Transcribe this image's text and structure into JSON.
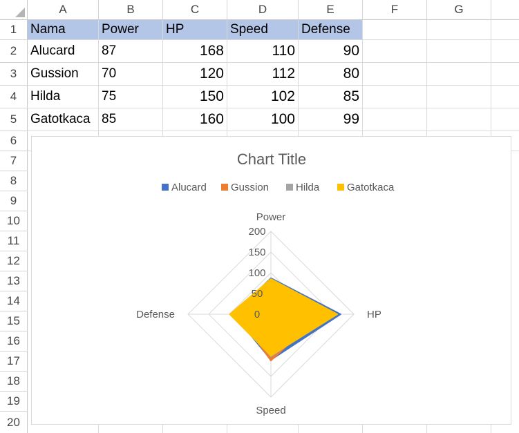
{
  "columns": [
    "A",
    "B",
    "C",
    "D",
    "E",
    "F",
    "G"
  ],
  "rows": [
    "1",
    "2",
    "3",
    "4",
    "5",
    "6",
    "7",
    "8",
    "9",
    "10",
    "11",
    "12",
    "13",
    "14",
    "15",
    "16",
    "17",
    "18",
    "19",
    "20"
  ],
  "table": {
    "headers": [
      "Nama",
      "Power",
      "HP",
      "Speed",
      "Defense"
    ],
    "rows": [
      [
        "Alucard",
        "87",
        "168",
        "110",
        "90"
      ],
      [
        "Gussion",
        "70",
        "120",
        "112",
        "80"
      ],
      [
        "Hilda",
        "75",
        "150",
        "102",
        "85"
      ],
      [
        "Gatotkaca",
        "85",
        "160",
        "100",
        "99"
      ]
    ]
  },
  "colors": {
    "header_fill": "#b4c6e7",
    "grid": "#d9d9d9"
  },
  "chart_data": {
    "type": "radar",
    "title": "Chart Title",
    "legend_position": "top",
    "categories": [
      "Power",
      "HP",
      "Speed",
      "Defense"
    ],
    "rlim": [
      0,
      200
    ],
    "ticks": [
      "0",
      "50",
      "100",
      "150",
      "200"
    ],
    "grid": true,
    "series": [
      {
        "name": "Alucard",
        "color": "#4472c4",
        "values": [
          87,
          168,
          110,
          90
        ]
      },
      {
        "name": "Gussion",
        "color": "#ed7d31",
        "values": [
          70,
          120,
          112,
          80
        ]
      },
      {
        "name": "Hilda",
        "color": "#a5a5a5",
        "values": [
          75,
          150,
          102,
          85
        ]
      },
      {
        "name": "Gatotkaca",
        "color": "#ffc000",
        "values": [
          85,
          160,
          100,
          99
        ]
      }
    ]
  }
}
